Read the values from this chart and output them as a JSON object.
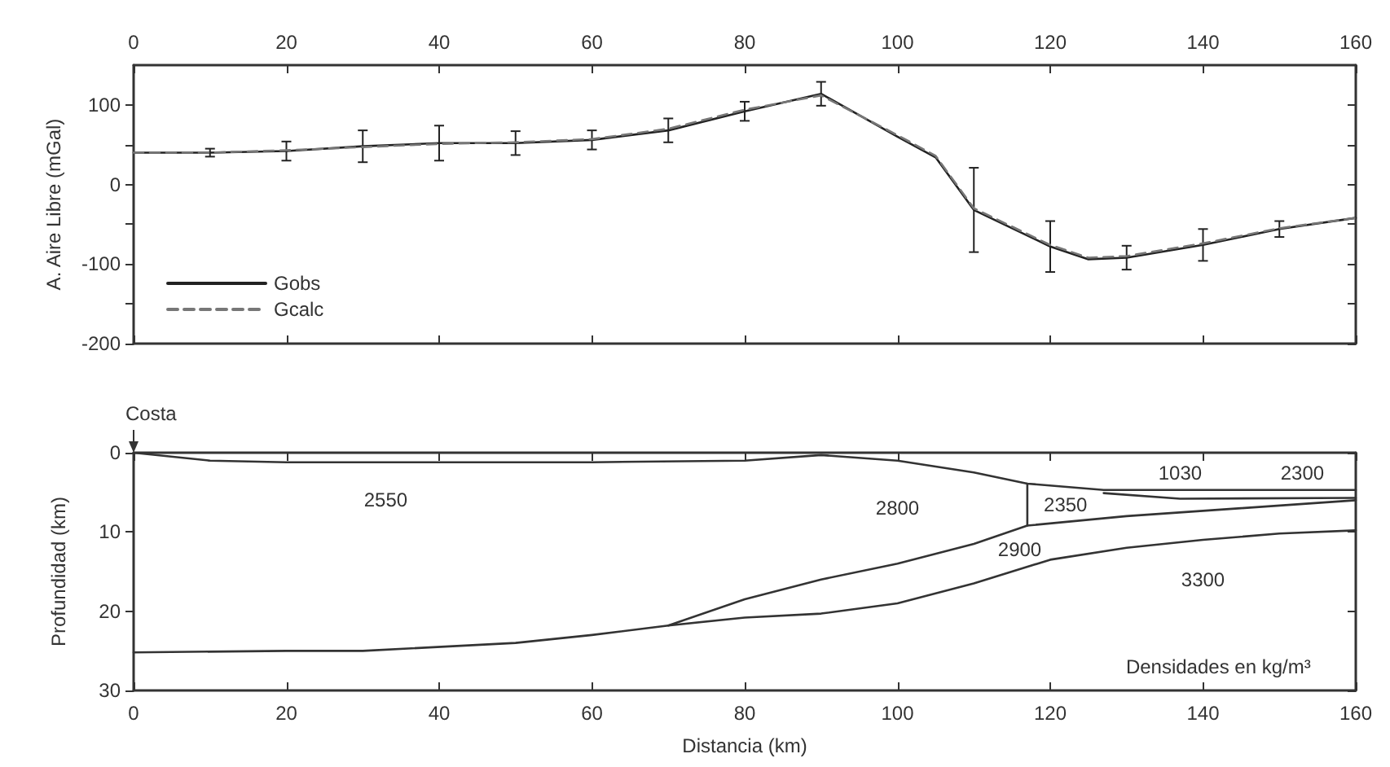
{
  "chart_data": [
    {
      "type": "line",
      "ylabel": "A. Aire Libre (mGal)",
      "xlim": [
        0,
        160
      ],
      "xticks": [
        0,
        20,
        40,
        60,
        80,
        100,
        120,
        140,
        160
      ],
      "ylim": [
        -200,
        150
      ],
      "yticks": [
        -200,
        {
          "value": -150,
          "label": null
        },
        -100,
        {
          "value": -50,
          "label": null
        },
        0,
        {
          "value": 50,
          "label": null
        },
        100
      ],
      "legend": "bottom left",
      "series": [
        {
          "name": "Gobs",
          "color": "#222222",
          "line_style": "solid",
          "x": [
            0,
            10,
            20,
            30,
            40,
            50,
            60,
            70,
            80,
            90,
            100,
            105,
            110,
            120,
            125,
            130,
            140,
            150,
            160
          ],
          "values": [
            40,
            40,
            42,
            48,
            52,
            52,
            56,
            68,
            92,
            114,
            60,
            34,
            -32,
            -78,
            -94,
            -92,
            -76,
            -56,
            -42
          ],
          "errors": [
            null,
            5,
            12,
            20,
            22,
            15,
            12,
            15,
            12,
            15,
            null,
            null,
            53,
            32,
            null,
            15,
            20,
            10,
            null
          ]
        },
        {
          "name": "Gcalc",
          "color": "#777777",
          "line_style": "dashed",
          "x": [
            0,
            10,
            20,
            30,
            40,
            50,
            60,
            70,
            80,
            90,
            100,
            105,
            110,
            120,
            125,
            130,
            140,
            150,
            160
          ],
          "values": [
            40,
            40,
            43,
            47,
            51,
            53,
            57,
            70,
            94,
            112,
            62,
            36,
            -30,
            -76,
            -92,
            -90,
            -74,
            -55,
            -42
          ]
        }
      ]
    },
    {
      "type": "line",
      "xlabel": "Distancia (km)",
      "ylabel": "Profundidad (km)",
      "xlim": [
        0,
        160
      ],
      "xticks": [
        0,
        20,
        40,
        60,
        80,
        100,
        120,
        140,
        160
      ],
      "ylim": [
        30,
        0
      ],
      "yticks": [
        0,
        10,
        20,
        30
      ],
      "annotations": [
        {
          "text": "Costa",
          "x": 0,
          "y": 0
        },
        "2550",
        "2800",
        "2350",
        "1030",
        "2300",
        "2900",
        "3300",
        "Densidades en kg/m³"
      ],
      "series": [
        {
          "color": "#333333",
          "x": [
            0,
            10,
            20,
            40,
            60,
            80,
            90,
            100,
            110,
            117,
            127,
            160
          ],
          "values": [
            0,
            1,
            1.2,
            1.2,
            1.2,
            1,
            0.3,
            1,
            2.5,
            3.9,
            4.7,
            4.7
          ]
        },
        {
          "color": "#333333",
          "x": [
            127,
            137,
            160
          ],
          "values": [
            5.1,
            5.8,
            5.7
          ]
        },
        {
          "color": "#333333",
          "x": [
            117,
            117
          ],
          "values": [
            3.9,
            9.2
          ]
        },
        {
          "color": "#333333",
          "x": [
            70,
            80,
            90,
            100,
            110,
            117,
            130,
            145,
            160
          ],
          "values": [
            21.8,
            18.5,
            16,
            14,
            11.5,
            9.2,
            8,
            7,
            6
          ]
        },
        {
          "color": "#333333",
          "x": [
            0,
            20,
            30,
            50,
            60,
            70,
            80,
            90,
            100,
            110,
            120,
            130,
            140,
            150,
            160
          ],
          "values": [
            25.2,
            25,
            25,
            24,
            23,
            21.8,
            20.8,
            20.3,
            19,
            16.5,
            13.5,
            12,
            11,
            10.2,
            9.8
          ]
        }
      ]
    }
  ]
}
